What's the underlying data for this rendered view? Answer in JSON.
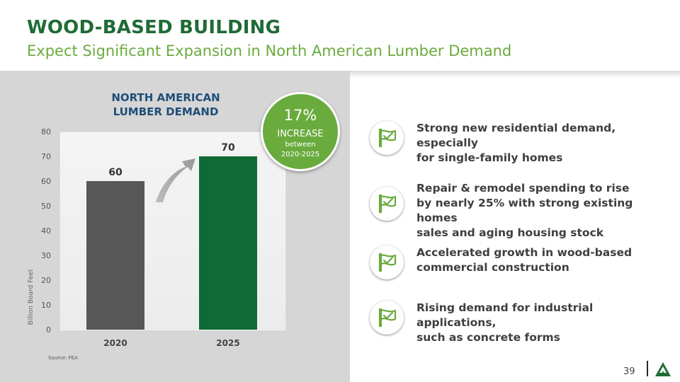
{
  "header": {
    "title": "WOOD-BASED BUILDING",
    "subtitle": "Expect Significant Expansion in North American Lumber Demand"
  },
  "chart_title_lines": [
    "NORTH AMERICAN",
    "LUMBER DEMAND"
  ],
  "chart_data": {
    "type": "bar",
    "title": "NORTH AMERICAN LUMBER DEMAND",
    "categories": [
      "2020",
      "2025"
    ],
    "values": [
      60,
      70
    ],
    "data_labels": [
      "60",
      "70"
    ],
    "bar_colors": [
      "#575757",
      "#0f6b35"
    ],
    "ylabel": "Billion Board Feet",
    "xlabel": "",
    "ylim": [
      0,
      80
    ],
    "yticks": [
      0,
      10,
      20,
      30,
      40,
      50,
      60,
      70,
      80
    ],
    "ytick_labels": [
      "0",
      "10",
      "20",
      "30",
      "40",
      "50",
      "60",
      "70",
      "80"
    ],
    "grid": false,
    "legend": "none"
  },
  "badge": {
    "percent": "17%",
    "label": "INCREASE",
    "between": "between",
    "range": "2020-2025",
    "color": "#6aab3e"
  },
  "source": "Source: FEA",
  "bullets": [
    {
      "icon": "flag-checkmark-icon",
      "lines": [
        "Strong new residential demand, especially",
        "for single-family homes"
      ]
    },
    {
      "icon": "flag-checkmark-icon",
      "lines": [
        "Repair & remodel spending to rise",
        "by nearly 25% with strong existing homes",
        "sales and aging housing stock"
      ]
    },
    {
      "icon": "flag-checkmark-icon",
      "lines": [
        "Accelerated growth in wood-based",
        "commercial construction"
      ]
    },
    {
      "icon": "flag-checkmark-icon",
      "lines": [
        "Rising demand for industrial applications,",
        "such as concrete forms"
      ]
    }
  ],
  "footer": {
    "page_number": "39",
    "logo": "triangle-tree-logo-icon"
  },
  "colors": {
    "title_green": "#1f6b36",
    "subtitle_green": "#6aab3e",
    "panel_gray": "#d6d6d6"
  }
}
